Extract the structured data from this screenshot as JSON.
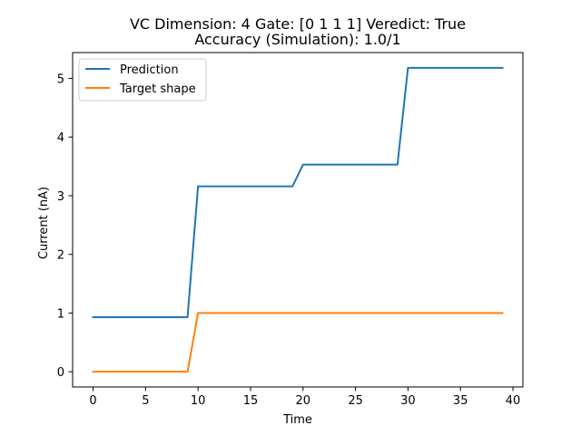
{
  "chart_data": {
    "type": "line",
    "title": [
      "VC Dimension: 4 Gate: [0 1 1 1] Veredict: True",
      "Accuracy (Simulation): 1.0/1"
    ],
    "xlabel": "Time",
    "ylabel": "Current (nA)",
    "xlim": [
      -1.95,
      40.95
    ],
    "ylim": [
      -0.26,
      5.44
    ],
    "xticks": [
      0,
      5,
      10,
      15,
      20,
      25,
      30,
      35,
      40
    ],
    "xtick_labels": [
      "0",
      "5",
      "10",
      "15",
      "20",
      "25",
      "30",
      "35",
      "40"
    ],
    "yticks": [
      0,
      1,
      2,
      3,
      4,
      5
    ],
    "ytick_labels": [
      "0",
      "1",
      "2",
      "3",
      "4",
      "5"
    ],
    "grid": false,
    "legend_position": "upper-left",
    "series": [
      {
        "name": "Prediction",
        "color": "#1f77b4",
        "x": [
          0,
          9,
          10,
          19,
          20,
          29,
          30,
          39
        ],
        "y": [
          0.93,
          0.93,
          3.16,
          3.16,
          3.53,
          3.53,
          5.18,
          5.18
        ]
      },
      {
        "name": "Target shape",
        "color": "#ff7f0e",
        "x": [
          0,
          9,
          10,
          39
        ],
        "y": [
          0,
          0,
          1,
          1
        ]
      }
    ]
  }
}
